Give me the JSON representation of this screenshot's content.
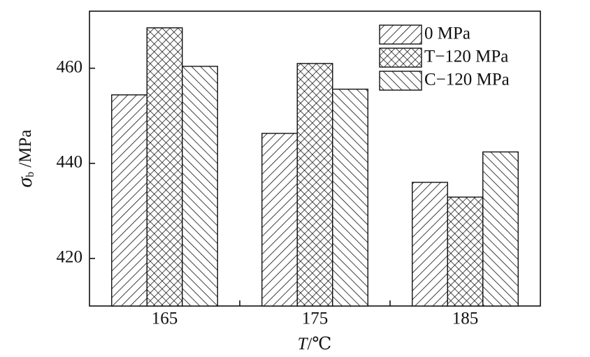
{
  "chart_data": {
    "type": "bar",
    "y_label": {
      "symbol": "σ",
      "subscript": "b",
      "unit": "/MPa"
    },
    "x_label": {
      "symbol": "T",
      "unit": "/℃"
    },
    "categories": [
      "165",
      "175",
      "185"
    ],
    "series": [
      {
        "name": "0 MPa",
        "color": "#111111",
        "hatch": "/",
        "values": [
          454.4,
          446.3,
          436.0
        ]
      },
      {
        "name": "T−120 MPa",
        "color": "#111111",
        "hatch": "x",
        "values": [
          468.5,
          461.0,
          432.9
        ]
      },
      {
        "name": "C−120 MPa",
        "color": "#111111",
        "hatch": "\\",
        "values": [
          460.4,
          455.6,
          442.4
        ]
      }
    ],
    "ylim": [
      410,
      472
    ],
    "yticks": [
      420,
      440,
      460
    ],
    "grid": false,
    "legend": "upper right"
  }
}
